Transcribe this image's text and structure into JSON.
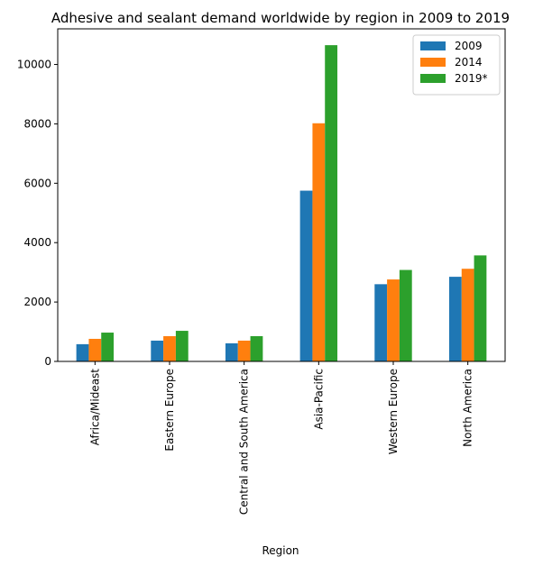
{
  "chart_data": {
    "type": "bar",
    "title": "Adhesive and sealant demand worldwide by region in 2009 to 2019",
    "xlabel": "Region",
    "ylabel": "",
    "categories": [
      "Africa/Mideast",
      "Eastern Europe",
      "Central and South America",
      "Asia-Pacific",
      "Western Europe",
      "North America"
    ],
    "series": [
      {
        "name": "2009",
        "color": "#1f77b4",
        "values": [
          580,
          700,
          610,
          5750,
          2600,
          2850
        ]
      },
      {
        "name": "2014",
        "color": "#ff7f0e",
        "values": [
          760,
          850,
          700,
          8020,
          2760,
          3120
        ]
      },
      {
        "name": "2019*",
        "color": "#2ca02c",
        "values": [
          970,
          1030,
          850,
          10650,
          3080,
          3570
        ]
      }
    ],
    "ylim": [
      0,
      11200
    ],
    "yticks": [
      0,
      2000,
      4000,
      6000,
      8000,
      10000
    ],
    "legend_position": "top-right",
    "grid": false
  }
}
